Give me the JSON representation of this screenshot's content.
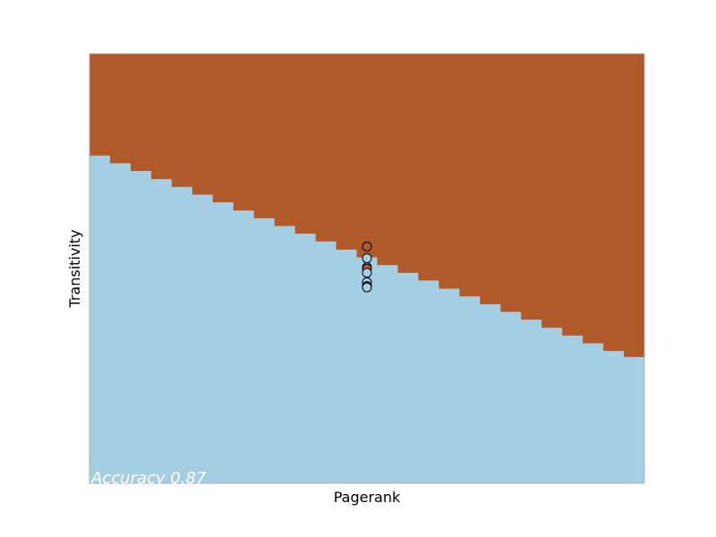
{
  "chart_data": {
    "type": "scatter",
    "subtype": "decision-boundary",
    "xlabel": "Pagerank",
    "ylabel": "Transitivity",
    "annotation": "Accuracy 0.87",
    "ticks_visible": false,
    "grid": false,
    "colors": {
      "class_0": "#a6cee3",
      "class_1": "#b15928",
      "frame": "#b0b0b0",
      "point_edge": "#000000"
    },
    "boundary_steps": [
      0.763,
      0.745,
      0.727,
      0.708,
      0.69,
      0.672,
      0.654,
      0.635,
      0.617,
      0.599,
      0.581,
      0.563,
      0.544,
      0.526,
      0.508,
      0.49,
      0.472,
      0.453,
      0.435,
      0.417,
      0.399,
      0.381,
      0.362,
      0.344,
      0.326,
      0.308,
      0.294
    ],
    "points": [
      {
        "x": 0.5,
        "y": 0.551,
        "class": 1
      },
      {
        "x": 0.5,
        "y": 0.524,
        "class": 0
      },
      {
        "x": 0.5,
        "y": 0.503,
        "class": 0
      },
      {
        "x": 0.5,
        "y": 0.5,
        "class": 1
      },
      {
        "x": 0.5,
        "y": 0.49,
        "class": 0
      },
      {
        "x": 0.5,
        "y": 0.468,
        "class": 0
      },
      {
        "x": 0.5,
        "y": 0.459,
        "class": 0
      },
      {
        "x": 0.5,
        "y": 0.457,
        "class": 0
      },
      {
        "x": 0.5,
        "y": 0.456,
        "class": 0
      }
    ]
  }
}
